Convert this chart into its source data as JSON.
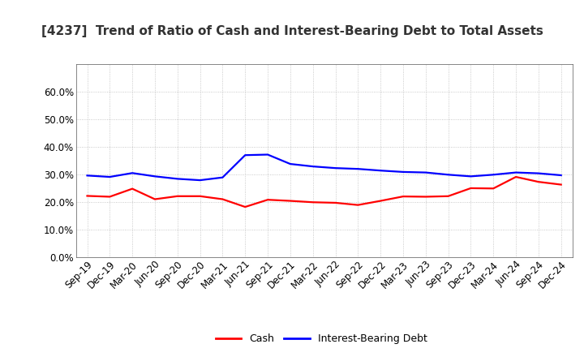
{
  "title": "[4237]  Trend of Ratio of Cash and Interest-Bearing Debt to Total Assets",
  "x_labels": [
    "Sep-19",
    "Dec-19",
    "Mar-20",
    "Jun-20",
    "Sep-20",
    "Dec-20",
    "Mar-21",
    "Jun-21",
    "Sep-21",
    "Dec-21",
    "Mar-22",
    "Jun-22",
    "Sep-22",
    "Dec-22",
    "Mar-23",
    "Jun-23",
    "Sep-23",
    "Dec-23",
    "Mar-24",
    "Jun-24",
    "Sep-24",
    "Dec-24"
  ],
  "cash": [
    0.222,
    0.219,
    0.248,
    0.21,
    0.221,
    0.221,
    0.21,
    0.182,
    0.208,
    0.204,
    0.199,
    0.197,
    0.189,
    0.204,
    0.22,
    0.219,
    0.221,
    0.25,
    0.249,
    0.291,
    0.273,
    0.263
  ],
  "interest_bearing_debt": [
    0.296,
    0.291,
    0.305,
    0.293,
    0.284,
    0.279,
    0.289,
    0.37,
    0.372,
    0.338,
    0.329,
    0.323,
    0.32,
    0.314,
    0.309,
    0.307,
    0.299,
    0.293,
    0.299,
    0.307,
    0.304,
    0.297
  ],
  "cash_color": "#ff0000",
  "debt_color": "#0000ff",
  "background_color": "#ffffff",
  "grid_color": "#aaaaaa",
  "ylim": [
    0.0,
    0.7
  ],
  "yticks": [
    0.0,
    0.1,
    0.2,
    0.3,
    0.4,
    0.5,
    0.6
  ],
  "legend_cash": "Cash",
  "legend_debt": "Interest-Bearing Debt",
  "line_width": 1.6,
  "title_fontsize": 11,
  "tick_fontsize": 8.5
}
